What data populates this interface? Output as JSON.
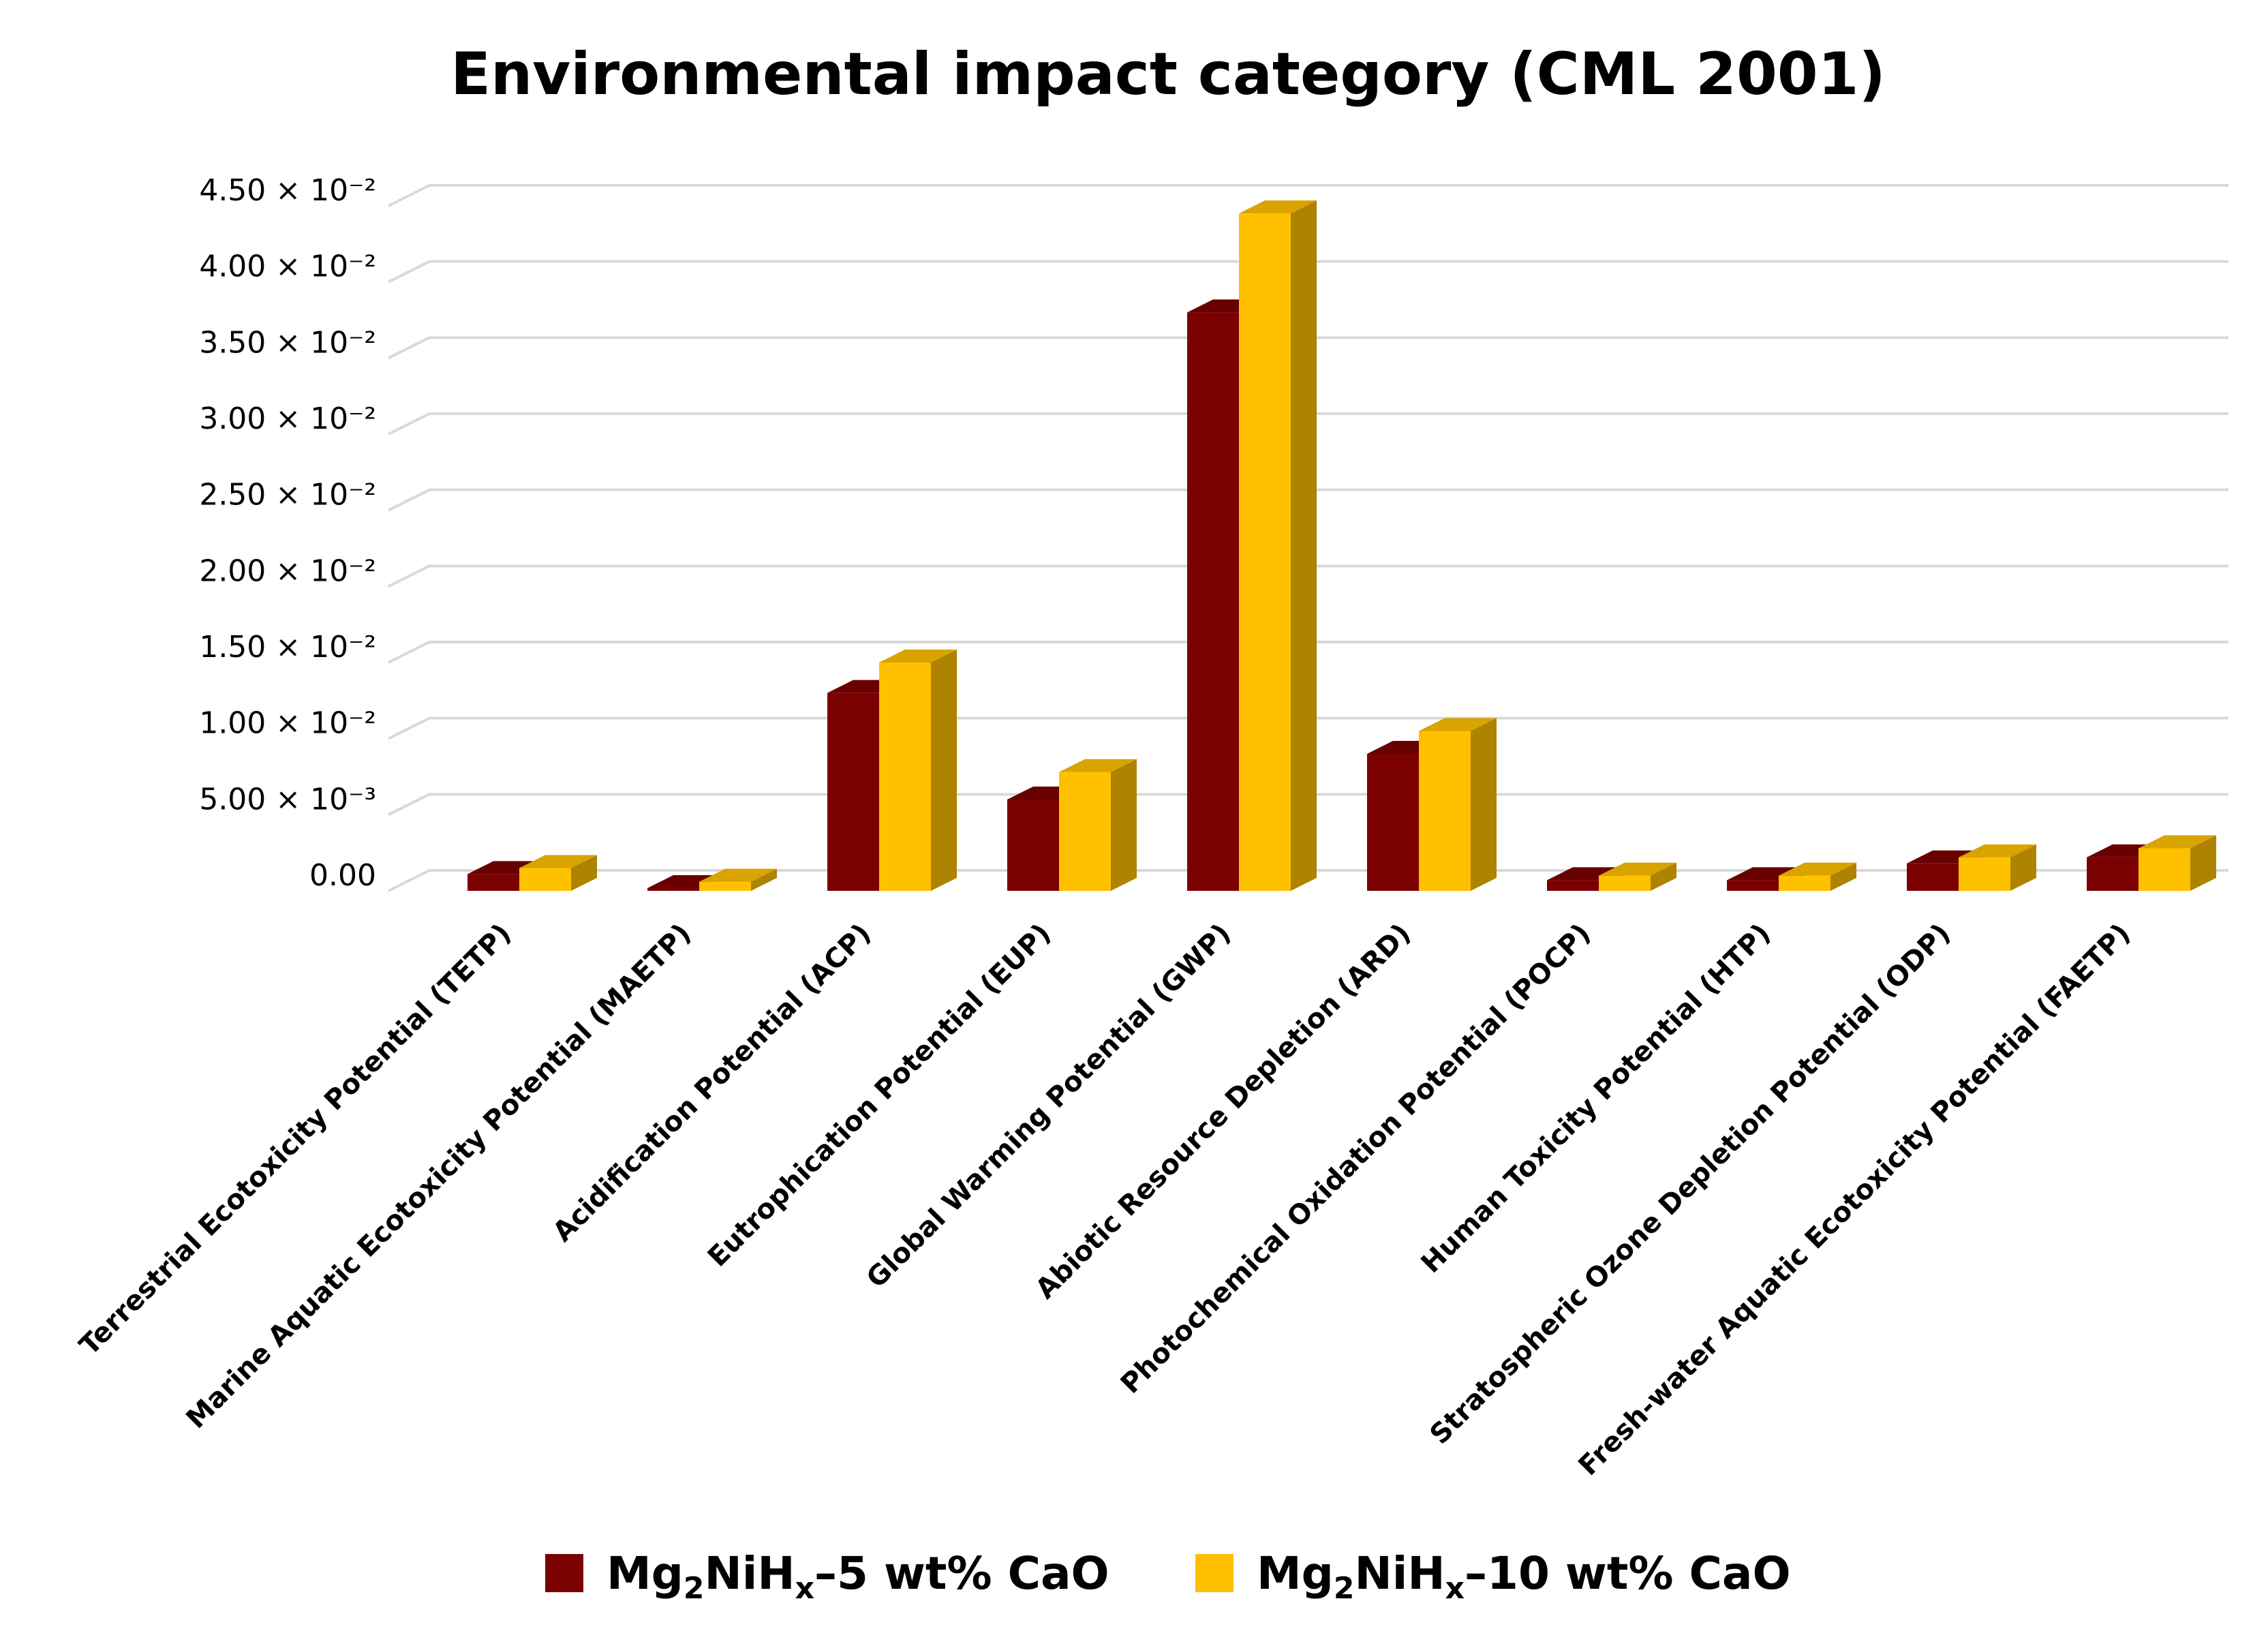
{
  "chart_data": {
    "type": "bar",
    "title": "Environmental impact category (CML 2001)",
    "xlabel": "",
    "ylabel": "",
    "ylim": [
      0,
      0.045
    ],
    "grid": true,
    "legend_position": "bottom",
    "y_ticks": [
      {
        "value": 0,
        "label": "0.00"
      },
      {
        "value": 0.005,
        "label": "5.00 × 10⁻³"
      },
      {
        "value": 0.01,
        "label": "1.00 × 10⁻²"
      },
      {
        "value": 0.015,
        "label": "1.50 × 10⁻²"
      },
      {
        "value": 0.02,
        "label": "2.00 × 10⁻²"
      },
      {
        "value": 0.025,
        "label": "2.50 × 10⁻²"
      },
      {
        "value": 0.03,
        "label": "3.00 × 10⁻²"
      },
      {
        "value": 0.035,
        "label": "3.50 × 10⁻²"
      },
      {
        "value": 0.04,
        "label": "4.00 × 10⁻²"
      },
      {
        "value": 0.045,
        "label": "4.50 × 10⁻²"
      }
    ],
    "categories": [
      "Terrestrial Ecotoxicity Potential (TETP)",
      "Marine Aquatic Ecotoxicity Potential (MAETP)",
      "Acidification Potential (ACP)",
      "Eutrophication Potential (EUP)",
      "Global Warming Potential (GWP)",
      "Abiotic Resource Depletion (ARD)",
      "Photochemical Oxidation Potential (POCP)",
      "Human Toxicity Potential (HTP)",
      "Stratospheric Ozone Depletion Potential (ODP)",
      "Fresh-water Aquatic Ecotoxicity Potential (FAETP)"
    ],
    "series": [
      {
        "name": "Mg₂NiHₓ–5 wt% CaO",
        "name_parts": {
          "a": "Mg",
          "sub1": "2",
          "b": "NiH",
          "sub2": "x",
          "c": "–5 wt% CaO"
        },
        "color": "#7B0000",
        "values": [
          0.0011,
          0.0001,
          0.013,
          0.006,
          0.038,
          0.009,
          0.0007,
          0.0007,
          0.0018,
          0.0022
        ]
      },
      {
        "name": "Mg₂NiHₓ–10 wt% CaO",
        "name_parts": {
          "a": "Mg",
          "sub1": "2",
          "b": "NiH",
          "sub2": "x",
          "c": "–10 wt% CaO"
        },
        "color": "#FFC000",
        "values": [
          0.0015,
          0.0006,
          0.015,
          0.0078,
          0.0445,
          0.0105,
          0.001,
          0.001,
          0.0022,
          0.0028
        ]
      }
    ]
  }
}
